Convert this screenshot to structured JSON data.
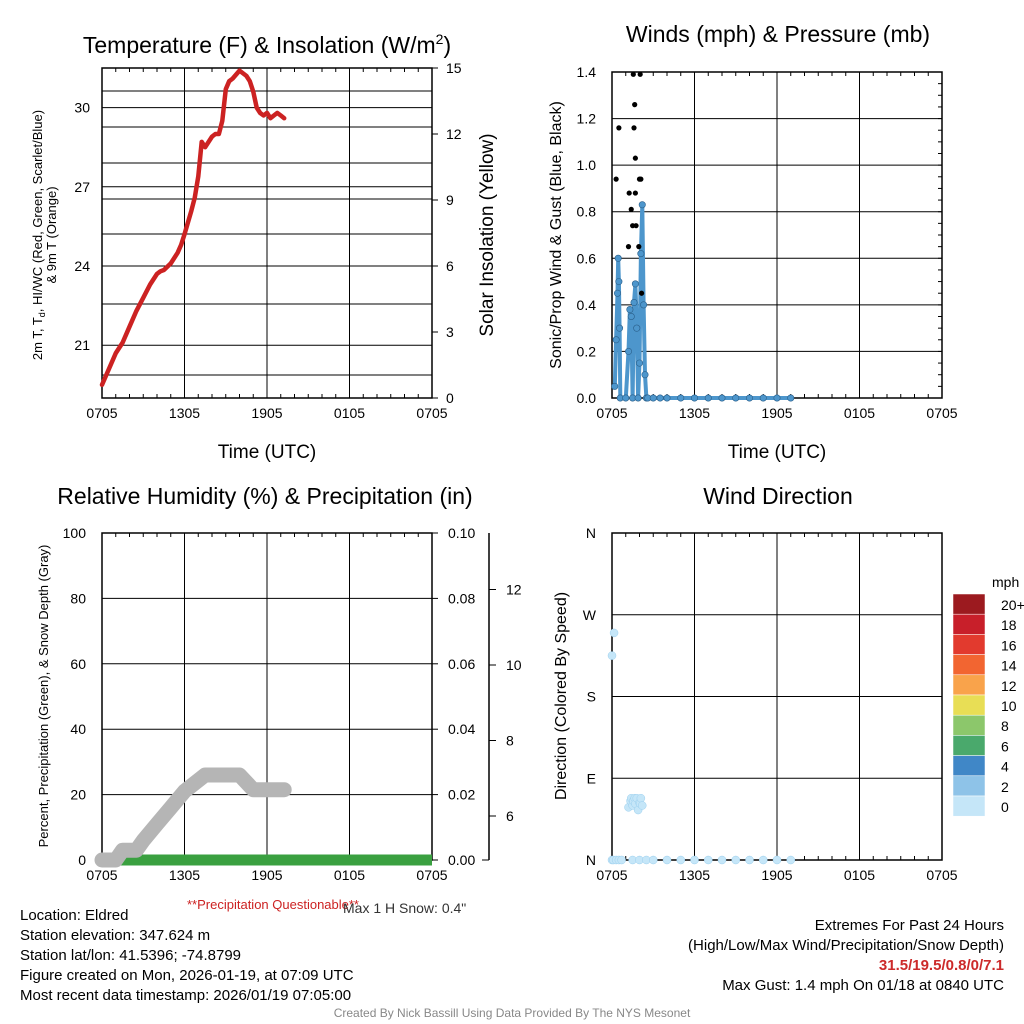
{
  "colors": {
    "temp": "#cc2222",
    "wind": "#4d96cc",
    "gust": "#000000",
    "rh": "#b5b5b5",
    "precip": "#3aa040",
    "questionable": "#cc2222",
    "grid": "#000000"
  },
  "chart_data": [
    {
      "type": "line",
      "title": "Temperature (F) & Insolation (W/m",
      "title_sup": "2",
      "title_end": ")",
      "xlabel": "Time (UTC)",
      "ylabel_lines": [
        "2m T, T",
        "d",
        ", HI/WC (Red, Green, Scarlet/Blue)",
        "& 9m T (Orange)"
      ],
      "y2label": "Solar Insolation (Yellow)",
      "x_ticks": [
        "0705",
        "1305",
        "1905",
        "0105",
        "0705"
      ],
      "xlim": [
        0,
        24
      ],
      "ylim": [
        19,
        31.5
      ],
      "y_ticks": [
        21,
        24,
        27,
        30
      ],
      "y2lim": [
        0,
        15
      ],
      "y2_ticks": [
        0,
        3,
        6,
        9,
        12,
        15
      ],
      "series": [
        {
          "name": "2m Temperature",
          "color_key": "temp",
          "x": [
            0,
            0.5,
            1,
            1.5,
            2,
            2.5,
            3,
            3.5,
            4,
            4.25,
            4.5,
            5,
            5.5,
            5.75,
            6,
            6.5,
            6.75,
            7,
            7.25,
            7.5,
            7.75,
            8,
            8.25,
            8.5,
            8.75,
            9,
            9.25,
            9.5,
            10,
            10.5,
            10.75,
            11,
            11.25,
            11.5,
            11.75,
            12,
            12.25,
            12.5,
            12.75,
            13,
            13.25
          ],
          "y": [
            19.5,
            20.1,
            20.7,
            21.1,
            21.7,
            22.3,
            22.8,
            23.3,
            23.7,
            23.8,
            23.85,
            24.1,
            24.5,
            24.8,
            25.2,
            26.1,
            26.6,
            27.4,
            28.7,
            28.5,
            28.7,
            28.9,
            29.0,
            29.0,
            29.5,
            30.7,
            31.0,
            31.1,
            31.4,
            31.2,
            31.0,
            30.6,
            30.0,
            29.8,
            29.7,
            29.8,
            29.6,
            29.7,
            29.8,
            29.7,
            29.6
          ]
        }
      ]
    },
    {
      "type": "scatter",
      "title": "Winds (mph) & Pressure (mb)",
      "xlabel": "Time (UTC)",
      "ylabel": "Sonic/Prop Wind & Gust (Blue, Black)",
      "x_ticks": [
        "0705",
        "1305",
        "1905",
        "0105",
        "0705"
      ],
      "xlim": [
        0,
        24
      ],
      "ylim": [
        0,
        1.4
      ],
      "y_ticks": [
        "0.0",
        "0.2",
        "0.4",
        "0.6",
        "0.8",
        "1.0",
        "1.2",
        "1.4"
      ],
      "series": [
        {
          "name": "Wind",
          "color_key": "wind",
          "x": [
            0.2,
            0.3,
            0.4,
            0.45,
            0.5,
            0.55,
            0.6,
            1.0,
            1.2,
            1.3,
            1.4,
            1.5,
            1.6,
            1.7,
            1.8,
            1.9,
            2.0,
            2.1,
            2.2,
            2.3,
            2.4,
            2.5,
            2.6,
            3.0,
            3.5,
            4.0,
            5.0,
            6.0,
            7.0,
            8.0,
            9.0,
            10.0,
            11.0,
            12.0,
            13.0
          ],
          "y": [
            0.05,
            0.25,
            0.45,
            0.6,
            0.5,
            0.3,
            0.0,
            0.0,
            0.2,
            0.38,
            0.35,
            0.0,
            0.41,
            0.49,
            0.3,
            0.0,
            0.15,
            0.62,
            0.83,
            0.4,
            0.1,
            0.0,
            0.0,
            0.0,
            0.0,
            0.0,
            0.0,
            0.0,
            0.0,
            0.0,
            0.0,
            0.0,
            0.0,
            0.0,
            0.0
          ]
        },
        {
          "name": "Gust",
          "color_key": "gust",
          "x": [
            0.3,
            0.5,
            1.2,
            1.25,
            1.4,
            1.5,
            1.55,
            1.6,
            1.65,
            1.7,
            1.7,
            1.75,
            1.95,
            2.0,
            2.05,
            2.1,
            2.15
          ],
          "y": [
            0.94,
            1.16,
            0.65,
            0.88,
            0.81,
            0.74,
            1.39,
            1.16,
            1.26,
            1.03,
            0.88,
            0.74,
            0.65,
            0.94,
            1.39,
            0.94,
            0.45
          ]
        }
      ]
    },
    {
      "type": "line",
      "title": "Relative Humidity (%) & Precipitation (in)",
      "ylabel": "Percent, Precipitation (Green), & Snow Depth (Gray)",
      "x_ticks": [
        "0705",
        "1305",
        "1905",
        "0105",
        "0705"
      ],
      "xlim": [
        0,
        24
      ],
      "ylim": [
        0,
        100
      ],
      "y_ticks": [
        0,
        20,
        40,
        60,
        80,
        100
      ],
      "y2lim": [
        0,
        0.1
      ],
      "y2_ticks": [
        "0.00",
        "0.02",
        "0.04",
        "0.06",
        "0.08",
        "0.10"
      ],
      "y3_ticks": [
        6,
        8,
        10,
        12
      ],
      "series": [
        {
          "name": "Snow Depth",
          "color_key": "rh",
          "x": [
            0,
            1,
            1.5,
            2.5,
            3,
            4,
            5,
            6,
            7.5,
            8,
            9,
            10,
            11,
            12,
            13.25
          ],
          "y": [
            0,
            0,
            3,
            3,
            6,
            11,
            16,
            21,
            26,
            26,
            26,
            26,
            21.5,
            21.5,
            21.5
          ]
        },
        {
          "name": "Precipitation",
          "color_key": "precip",
          "x": [
            0,
            24
          ],
          "y": [
            0,
            0
          ]
        }
      ],
      "annotations": {
        "questionable": "**Precipitation Questionable**",
        "snow": "Max 1 H Snow: 0.4\""
      }
    },
    {
      "type": "scatter",
      "title": "Wind Direction",
      "ylabel": "Direction (Colored By Speed)",
      "x_ticks": [
        "0705",
        "1305",
        "1905",
        "0105",
        "0705"
      ],
      "xlim": [
        0,
        24
      ],
      "ylim": [
        0,
        360
      ],
      "y_ticks": [
        "N",
        "E",
        "S",
        "W",
        "N"
      ],
      "series": [
        {
          "name": "Direction",
          "x": [
            0.0,
            0.1,
            0.3,
            0.5,
            0.7,
            1.2,
            1.35,
            1.4,
            1.5,
            1.55,
            1.65,
            1.7,
            1.8,
            1.9,
            2.0,
            2.05,
            2.1,
            2.2,
            0.0,
            0.15,
            1.5,
            2.0,
            2.5,
            3.0,
            4.0,
            5.0,
            6.0,
            7.0,
            8.0,
            9.0,
            10.0,
            11.0,
            12.0,
            13.0
          ],
          "y": [
            0,
            0,
            0,
            0,
            0,
            58,
            65,
            68,
            60,
            65,
            68,
            62,
            68,
            55,
            63,
            62,
            68,
            60,
            225,
            250,
            0,
            0,
            0,
            0,
            0,
            0,
            0,
            0,
            0,
            0,
            0,
            0,
            0,
            0
          ]
        }
      ],
      "legend": {
        "unit": "mph",
        "labels": [
          "20+",
          "18",
          "16",
          "14",
          "12",
          "10",
          "8",
          "6",
          "4",
          "2",
          "0"
        ],
        "colors": [
          "#9c1a1f",
          "#c81f2a",
          "#e23a2e",
          "#f26531",
          "#f9a34b",
          "#e8de55",
          "#8cc76b",
          "#4aa96c",
          "#4087c7",
          "#8ec3e8",
          "#c5e6f8"
        ]
      }
    }
  ],
  "info": {
    "location": "Location: Eldred",
    "elevation": "Station elevation: 347.624 m",
    "latlon": "Station lat/lon: 41.5396; -74.8799",
    "created": "Figure created on Mon, 2026-01-19, at 07:09 UTC",
    "recent": "Most recent data timestamp: 2026/01/19 07:05:00",
    "extremes_title": "Extremes For Past 24 Hours",
    "extremes_sub": "(High/Low/Max Wind/Precipitation/Snow Depth)",
    "extremes_values": "31.5/19.5/0.8/0/7.1",
    "max_gust": "Max Gust: 1.4 mph On 01/18 at 0840 UTC",
    "credit": "Created By Nick Bassill Using Data Provided By The NYS Mesonet"
  }
}
